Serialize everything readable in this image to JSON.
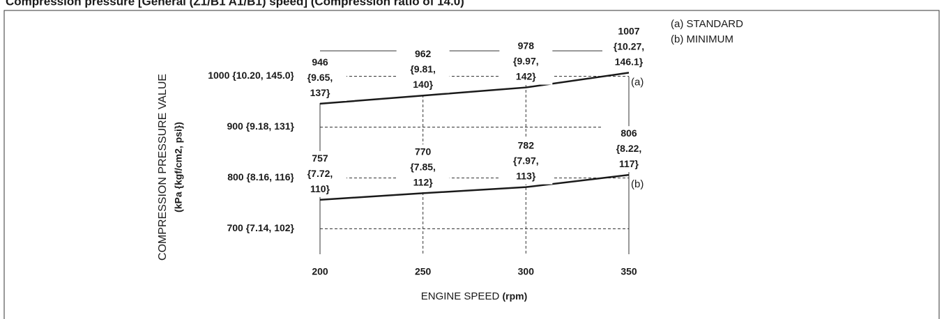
{
  "chart_data": {
    "type": "line",
    "title": "Compression pressure [General (Z1/B1 A1/B1) speed] (Compression ratio of 14.0)",
    "x_label": "ENGINE SPEED",
    "x_unit": "(rpm)",
    "y_label": "COMPRESSION PRESSURE VALUE",
    "y_unit": "(kPa {kgf/cm2, psi})",
    "x": [
      200,
      250,
      300,
      350
    ],
    "xlim": [
      200,
      350
    ],
    "xticks": [
      200,
      250,
      300,
      350
    ],
    "ylim": [
      650,
      1050
    ],
    "yticks": [
      {
        "value": 700,
        "label": "700 {7.14, 102}"
      },
      {
        "value": 800,
        "label": "800 {8.16, 116}"
      },
      {
        "value": 900,
        "label": "900 {9.18, 131}"
      },
      {
        "value": 1000,
        "label": "1000 {10.20, 145.0}"
      }
    ],
    "grid": true,
    "series": [
      {
        "name": "STANDARD",
        "key": "(a)",
        "color": "#1a1a1a",
        "values": [
          946,
          962,
          978,
          1007
        ],
        "value_labels": [
          "946 {9.65, 137}",
          "962 {9.81, 140}",
          "978 {9.97, 142}",
          "1007 {10.27, 146.1}"
        ]
      },
      {
        "name": "MINIMUM",
        "key": "(b)",
        "color": "#1a1a1a",
        "values": [
          757,
          770,
          782,
          806
        ],
        "value_labels": [
          "757 {7.72, 110}",
          "770 {7.85, 112}",
          "782 {7.97, 113}",
          "806 {8.22, 117}"
        ]
      }
    ]
  }
}
